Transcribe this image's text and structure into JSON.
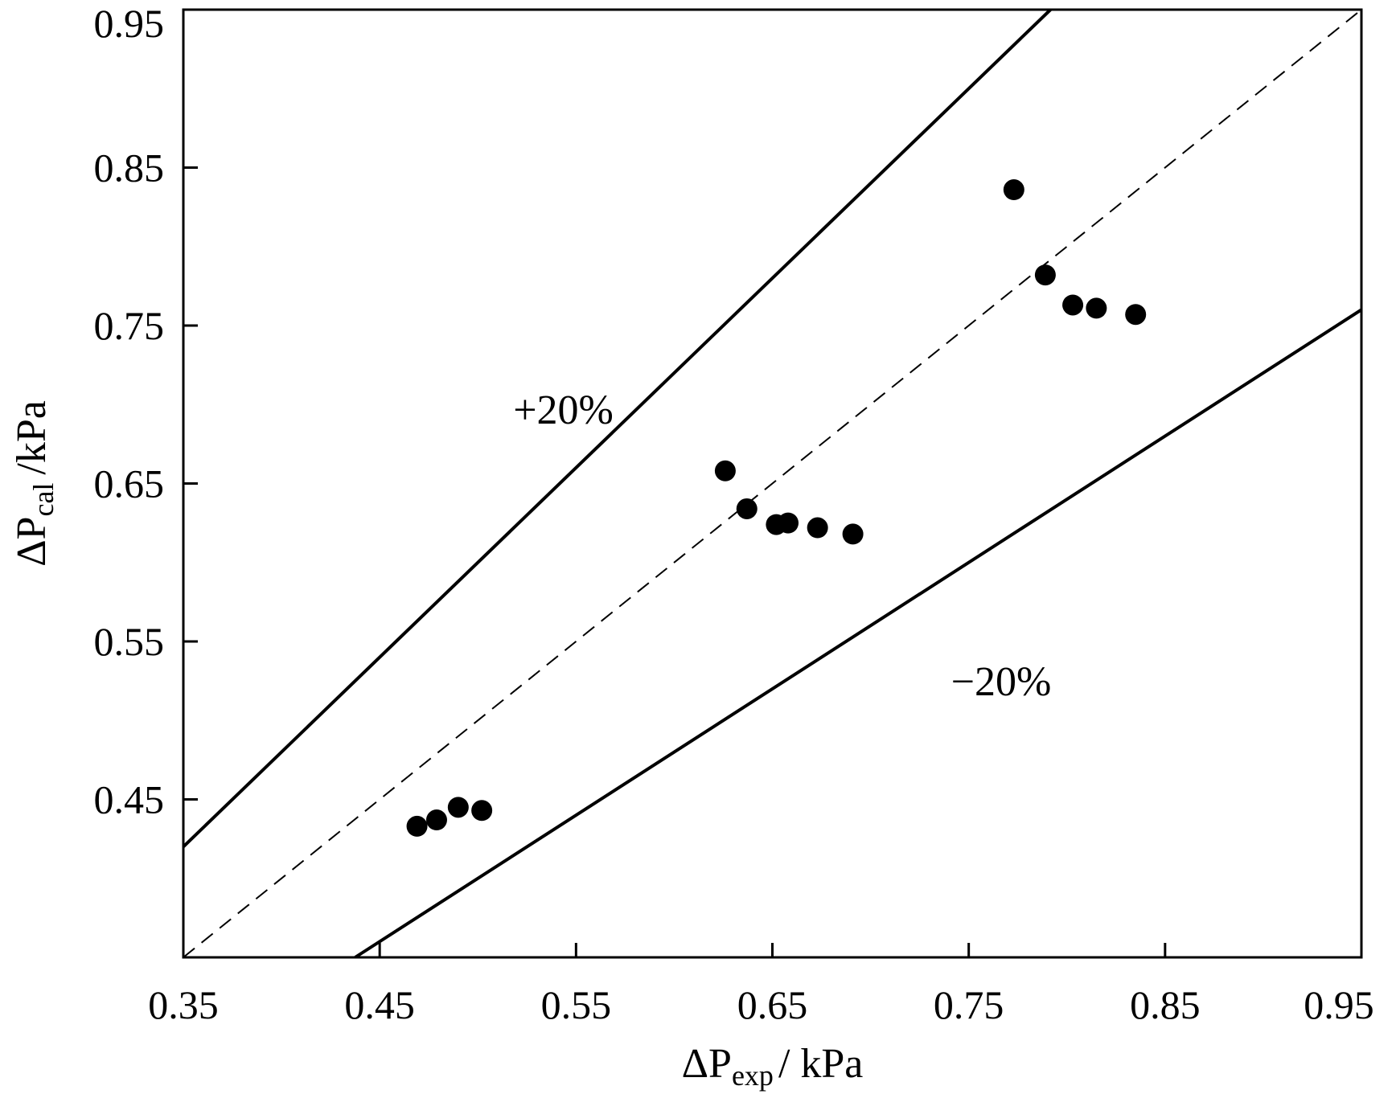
{
  "chart_data": {
    "type": "scatter",
    "xlabel": {
      "main": "ΔP",
      "sub": "exp",
      "unit": "/ kPa"
    },
    "ylabel": {
      "main": "ΔP",
      "sub": "cal",
      "unit": "/kPa"
    },
    "xlim": [
      0.35,
      0.95
    ],
    "ylim": [
      0.35,
      0.95
    ],
    "x_ticks": [
      "0.35",
      "0.45",
      "0.55",
      "0.65",
      "0.75",
      "0.85",
      "0.95"
    ],
    "y_ticks": [
      "0.45",
      "0.55",
      "0.65",
      "0.75",
      "0.85",
      "0.95"
    ],
    "grid": false,
    "series": [
      {
        "points": [
          [
            0.469,
            0.433
          ],
          [
            0.479,
            0.437
          ],
          [
            0.49,
            0.445
          ],
          [
            0.502,
            0.443
          ],
          [
            0.626,
            0.658
          ],
          [
            0.637,
            0.634
          ],
          [
            0.652,
            0.624
          ],
          [
            0.658,
            0.625
          ],
          [
            0.673,
            0.622
          ],
          [
            0.691,
            0.618
          ],
          [
            0.773,
            0.836
          ],
          [
            0.789,
            0.782
          ],
          [
            0.803,
            0.763
          ],
          [
            0.815,
            0.761
          ],
          [
            0.835,
            0.757
          ]
        ]
      }
    ],
    "reference_lines": [
      {
        "label": "+20%",
        "slope": 1.2,
        "style": "solid"
      },
      {
        "label": "",
        "slope": 1.0,
        "style": "dashed"
      },
      {
        "label": "−20%",
        "slope": 0.8,
        "style": "solid"
      }
    ],
    "annotations": [
      "+20%",
      "−20%"
    ]
  }
}
